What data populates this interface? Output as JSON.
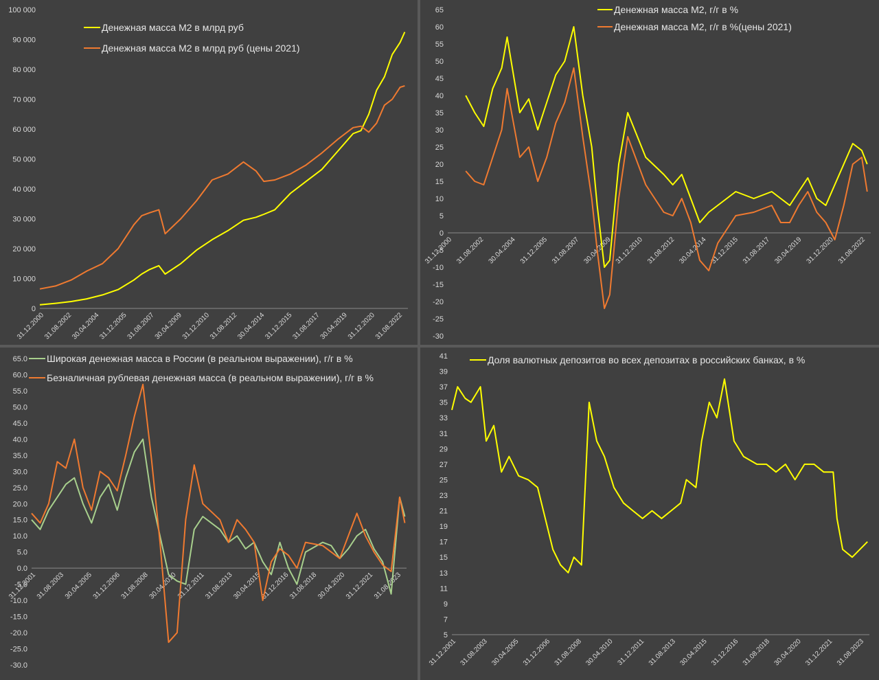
{
  "colors": {
    "yellow": "#ffff00",
    "orange": "#f07a30",
    "green": "#a8d08d",
    "background": "#404040",
    "text": "#d9d9d9"
  },
  "chart_data": [
    {
      "id": "c1",
      "type": "line",
      "title": "",
      "xlabel": "",
      "ylabel": "",
      "ylim": [
        0,
        100000
      ],
      "yticks": [
        "0",
        "10 000",
        "20 000",
        "30 000",
        "40 000",
        "50 000",
        "60 000",
        "70 000",
        "80 000",
        "90 000",
        "100 000"
      ],
      "xticks": [
        "31.12.2000",
        "31.08.2002",
        "30.04.2004",
        "31.12.2005",
        "31.08.2007",
        "30.04.2009",
        "31.12.2010",
        "31.08.2012",
        "30.04.2014",
        "31.12.2015",
        "31.08.2017",
        "30.04.2019",
        "31.12.2020",
        "31.08.2022"
      ],
      "xlim": [
        2001.0,
        2024.5
      ],
      "legend_position": "top-left",
      "series": [
        {
          "name": "Денежная масса М2 в млрд руб",
          "color": "yellow",
          "x": [
            2001.0,
            2002.0,
            2003.0,
            2004.0,
            2005.0,
            2006.0,
            2007.0,
            2007.5,
            2008.0,
            2008.6,
            2009.0,
            2010.0,
            2011.0,
            2012.0,
            2013.0,
            2014.0,
            2014.8,
            2015.3,
            2016.0,
            2017.0,
            2018.0,
            2019.0,
            2020.0,
            2021.0,
            2021.5,
            2022.0,
            2022.5,
            2023.0,
            2023.5,
            2024.0,
            2024.3
          ],
          "y": [
            1200,
            1700,
            2300,
            3200,
            4500,
            6300,
            9500,
            11500,
            13000,
            14300,
            11500,
            15000,
            19500,
            23000,
            26000,
            29500,
            30500,
            31500,
            33000,
            38500,
            42500,
            46500,
            52500,
            58500,
            59500,
            65000,
            73000,
            77500,
            85000,
            89000,
            92500
          ]
        },
        {
          "name": "Денежная масса М2 в млрд руб (цены 2021)",
          "color": "orange",
          "x": [
            2001.0,
            2002.0,
            2003.0,
            2004.0,
            2005.0,
            2006.0,
            2007.0,
            2007.5,
            2008.0,
            2008.6,
            2009.0,
            2010.0,
            2011.0,
            2012.0,
            2013.0,
            2014.0,
            2014.8,
            2015.3,
            2016.0,
            2017.0,
            2018.0,
            2019.0,
            2020.0,
            2021.0,
            2021.5,
            2022.0,
            2022.5,
            2023.0,
            2023.5,
            2024.0,
            2024.3
          ],
          "y": [
            6500,
            7500,
            9500,
            12500,
            15000,
            20000,
            28000,
            31000,
            32000,
            33000,
            25000,
            30000,
            36000,
            43000,
            45000,
            49000,
            46000,
            42500,
            43000,
            45000,
            48000,
            52000,
            56500,
            60500,
            61000,
            59000,
            62000,
            68000,
            70000,
            74000,
            74500
          ]
        }
      ]
    },
    {
      "id": "c2",
      "type": "line",
      "title": "",
      "xlabel": "",
      "ylabel": "",
      "ylim": [
        -30,
        65
      ],
      "yticks": [
        "65",
        "60",
        "55",
        "50",
        "45",
        "40",
        "35",
        "30",
        "25",
        "20",
        "15",
        "10",
        "5",
        "0",
        "-5",
        "-10",
        "-15",
        "-20",
        "-25",
        "-30"
      ],
      "xticks": [
        "31.12.2000",
        "31.08.2002",
        "30.04.2004",
        "31.12.2005",
        "31.08.2007",
        "30.04.2009",
        "31.12.2010",
        "31.08.2012",
        "30.04.2014",
        "31.12.2015",
        "31.08.2017",
        "30.04.2019",
        "31.12.2020",
        "31.08.2022"
      ],
      "xlim": [
        2001.0,
        2024.5
      ],
      "legend_position": "top-center",
      "series": [
        {
          "name": "Денежная масса М2, г/г в %",
          "color": "yellow",
          "x": [
            2002.0,
            2002.5,
            2003.0,
            2003.5,
            2004.0,
            2004.3,
            2005.0,
            2005.5,
            2006.0,
            2006.5,
            2007.0,
            2007.5,
            2008.0,
            2008.5,
            2009.0,
            2009.3,
            2009.7,
            2010.0,
            2010.5,
            2011.0,
            2012.0,
            2013.0,
            2013.5,
            2014.0,
            2014.5,
            2015.0,
            2015.5,
            2016.0,
            2017.0,
            2018.0,
            2019.0,
            2019.5,
            2020.0,
            2020.5,
            2021.0,
            2021.5,
            2022.0,
            2022.5,
            2023.0,
            2023.5,
            2024.0,
            2024.3
          ],
          "y": [
            40,
            35,
            31,
            42,
            48,
            57,
            35,
            39,
            30,
            38,
            46,
            50,
            60,
            40,
            25,
            8,
            -10,
            -8,
            20,
            35,
            22,
            17,
            14,
            17,
            10,
            3,
            6,
            8,
            12,
            10,
            12,
            10,
            8,
            12,
            16,
            10,
            8,
            14,
            20,
            26,
            24,
            20
          ]
        },
        {
          "name": "Денежная масса М2, г/г в %(цены 2021)",
          "color": "orange",
          "x": [
            2002.0,
            2002.5,
            2003.0,
            2003.5,
            2004.0,
            2004.3,
            2005.0,
            2005.5,
            2006.0,
            2006.5,
            2007.0,
            2007.5,
            2008.0,
            2008.5,
            2009.0,
            2009.3,
            2009.7,
            2010.0,
            2010.5,
            2011.0,
            2012.0,
            2013.0,
            2013.5,
            2014.0,
            2014.5,
            2015.0,
            2015.5,
            2016.0,
            2017.0,
            2018.0,
            2019.0,
            2019.5,
            2020.0,
            2020.5,
            2021.0,
            2021.5,
            2022.0,
            2022.5,
            2023.0,
            2023.5,
            2024.0,
            2024.3
          ],
          "y": [
            18,
            15,
            14,
            22,
            30,
            42,
            22,
            25,
            15,
            22,
            32,
            38,
            48,
            28,
            10,
            -5,
            -22,
            -18,
            10,
            28,
            14,
            6,
            5,
            10,
            3,
            -8,
            -11,
            -3,
            5,
            6,
            8,
            3,
            3,
            8,
            12,
            6,
            3,
            -2,
            8,
            20,
            22,
            12
          ]
        }
      ]
    },
    {
      "id": "c3",
      "type": "line",
      "title": "",
      "xlabel": "",
      "ylabel": "",
      "ylim": [
        -30,
        65
      ],
      "yticks": [
        "65.0",
        "60.0",
        "55.0",
        "50.0",
        "45.0",
        "40.0",
        "35.0",
        "30.0",
        "25.0",
        "20.0",
        "15.0",
        "10.0",
        "5.0",
        "0.0",
        "-5.0",
        "-10.0",
        "-15.0",
        "-20.0",
        "-25.0",
        "-30.0"
      ],
      "xticks": [
        "31.12.2001",
        "31.08.2003",
        "30.04.2005",
        "31.12.2006",
        "31.08.2008",
        "30.04.2010",
        "31.12.2011",
        "31.08.2013",
        "30.04.2015",
        "31.12.2016",
        "31.08.2018",
        "30.04.2020",
        "31.12.2021",
        "31.08.2023"
      ],
      "xlim": [
        2002.0,
        2023.9
      ],
      "legend_position": "top-left",
      "series": [
        {
          "name": "Широкая денежная масса в России (в реальном выражении), г/г в %",
          "color": "green",
          "x": [
            2002.0,
            2002.5,
            2003.0,
            2003.5,
            2004.0,
            2004.5,
            2005.0,
            2005.5,
            2006.0,
            2006.5,
            2007.0,
            2007.5,
            2008.0,
            2008.5,
            2009.0,
            2009.5,
            2010.0,
            2010.5,
            2011.0,
            2011.5,
            2012.0,
            2013.0,
            2013.5,
            2014.0,
            2014.5,
            2015.0,
            2015.5,
            2016.0,
            2016.5,
            2017.0,
            2017.5,
            2018.0,
            2019.0,
            2019.5,
            2020.0,
            2020.5,
            2021.0,
            2021.5,
            2022.0,
            2022.5,
            2023.0,
            2023.5,
            2023.8
          ],
          "y": [
            15,
            12,
            18,
            22,
            26,
            28,
            20,
            14,
            22,
            26,
            18,
            28,
            36,
            40,
            22,
            10,
            -2,
            -4,
            -5,
            12,
            16,
            12,
            8,
            10,
            6,
            8,
            2,
            -2,
            8,
            0,
            -5,
            5,
            8,
            7,
            3,
            6,
            10,
            12,
            6,
            2,
            -8,
            22,
            16
          ]
        },
        {
          "name": "Безналичная рублевая денежная масса (в реальном выражении), г/г в %",
          "color": "orange",
          "x": [
            2002.0,
            2002.5,
            2003.0,
            2003.5,
            2004.0,
            2004.5,
            2005.0,
            2005.5,
            2006.0,
            2006.5,
            2007.0,
            2007.5,
            2008.0,
            2008.5,
            2009.0,
            2009.5,
            2010.0,
            2010.5,
            2011.0,
            2011.5,
            2012.0,
            2013.0,
            2013.5,
            2014.0,
            2014.5,
            2015.0,
            2015.5,
            2016.0,
            2016.5,
            2017.0,
            2017.5,
            2018.0,
            2019.0,
            2019.5,
            2020.0,
            2020.5,
            2021.0,
            2021.5,
            2022.0,
            2022.5,
            2023.0,
            2023.5,
            2023.8
          ],
          "y": [
            17,
            14,
            20,
            33,
            31,
            40,
            25,
            18,
            30,
            28,
            24,
            35,
            47,
            57,
            34,
            8,
            -23,
            -20,
            15,
            32,
            20,
            15,
            8,
            15,
            12,
            8,
            -10,
            2,
            6,
            4,
            0,
            8,
            7,
            5,
            3,
            10,
            17,
            10,
            5,
            1,
            -1,
            22,
            14
          ]
        }
      ]
    },
    {
      "id": "c4",
      "type": "line",
      "title": "",
      "xlabel": "",
      "ylabel": "",
      "ylim": [
        5,
        41
      ],
      "yticks": [
        "41",
        "39",
        "37",
        "35",
        "33",
        "31",
        "29",
        "27",
        "25",
        "23",
        "21",
        "19",
        "17",
        "15",
        "13",
        "11",
        "9",
        "7",
        "5"
      ],
      "xticks": [
        "31.12.2001",
        "31.08.2003",
        "30.04.2005",
        "31.12.2006",
        "31.08.2008",
        "30.04.2010",
        "31.12.2011",
        "31.08.2013",
        "30.04.2015",
        "31.12.2016",
        "31.08.2018",
        "30.04.2020",
        "31.12.2021",
        "31.08.2023"
      ],
      "xlim": [
        2002.0,
        2023.9
      ],
      "legend_position": "top-left",
      "series": [
        {
          "name": "Доля валютных депозитов во всех депозитах в российских банках,  в %",
          "color": "yellow",
          "x": [
            2002.0,
            2002.3,
            2002.7,
            2003.0,
            2003.5,
            2003.8,
            2004.2,
            2004.6,
            2005.0,
            2005.5,
            2006.0,
            2006.5,
            2006.9,
            2007.3,
            2007.7,
            2008.1,
            2008.4,
            2008.8,
            2009.2,
            2009.6,
            2010.0,
            2010.5,
            2011.0,
            2011.5,
            2012.0,
            2012.5,
            2013.0,
            2013.5,
            2014.0,
            2014.3,
            2014.8,
            2015.1,
            2015.5,
            2015.9,
            2016.3,
            2016.8,
            2017.3,
            2018.0,
            2018.5,
            2019.0,
            2019.5,
            2020.0,
            2020.5,
            2021.0,
            2021.5,
            2022.0,
            2022.2,
            2022.5,
            2023.0,
            2023.4,
            2023.8
          ],
          "y": [
            34,
            37,
            35.5,
            35,
            37,
            30,
            32,
            26,
            28,
            25.5,
            25,
            24,
            20,
            16,
            14,
            13,
            15,
            14,
            35,
            30,
            28,
            24,
            22,
            21,
            20,
            21,
            20,
            21,
            22,
            25,
            24,
            30,
            35,
            33,
            38,
            30,
            28,
            27,
            27,
            26,
            27,
            25,
            27,
            27,
            26,
            26,
            20,
            16,
            15,
            16,
            17
          ]
        }
      ]
    }
  ]
}
